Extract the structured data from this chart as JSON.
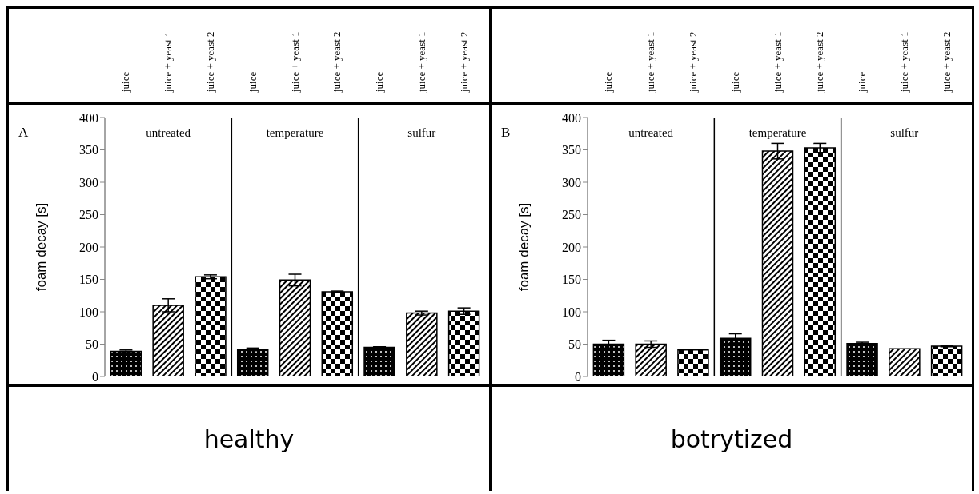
{
  "chart_data": [
    {
      "type": "bar",
      "title": "A",
      "xlabel": "healthy",
      "ylabel": "foam decay [s]",
      "categories": [
        "juice",
        "juice + yeast 1",
        "juice + yeast 2",
        "juice",
        "juice + yeast 1",
        "juice + yeast 2",
        "juice",
        "juice + yeast 1",
        "juice + yeast 2"
      ],
      "values": [
        39,
        110,
        154,
        42,
        149,
        131,
        45,
        98,
        101
      ],
      "errors": [
        2,
        10,
        3,
        2,
        9,
        1,
        1,
        3,
        5
      ],
      "colors": [
        "#000000",
        "#000000",
        "#000000",
        "#000000",
        "#000000",
        "#000000",
        "#000000",
        "#000000",
        "#000000"
      ],
      "ylim": [
        0,
        400
      ],
      "yticks": [
        0,
        50,
        100,
        150,
        200,
        250,
        300,
        350,
        400
      ],
      "annotations": [
        "untreated",
        "temperature",
        "sulfur"
      ],
      "grid": false,
      "legend": false
    },
    {
      "type": "bar",
      "title": "B",
      "xlabel": "botrytized",
      "ylabel": "foam decay [s]",
      "categories": [
        "juice",
        "juice + yeast 1",
        "juice + yeast 2",
        "juice",
        "juice + yeast 1",
        "juice + yeast 2",
        "juice",
        "juice + yeast 1",
        "juice + yeast 2"
      ],
      "values": [
        50,
        50,
        41,
        59,
        348,
        353,
        51,
        43,
        47
      ],
      "errors": [
        6,
        5,
        null,
        7,
        12,
        7,
        2,
        null,
        1
      ],
      "colors": [
        "#000000",
        "#000000",
        "#000000",
        "#000000",
        "#000000",
        "#000000",
        "#000000",
        "#000000",
        "#000000"
      ],
      "ylim": [
        0,
        400
      ],
      "yticks": [
        0,
        50,
        100,
        150,
        200,
        250,
        300,
        350,
        400
      ],
      "annotations": [
        "untreated",
        "temperature",
        "sulfur"
      ],
      "grid": false,
      "legend": false
    }
  ]
}
